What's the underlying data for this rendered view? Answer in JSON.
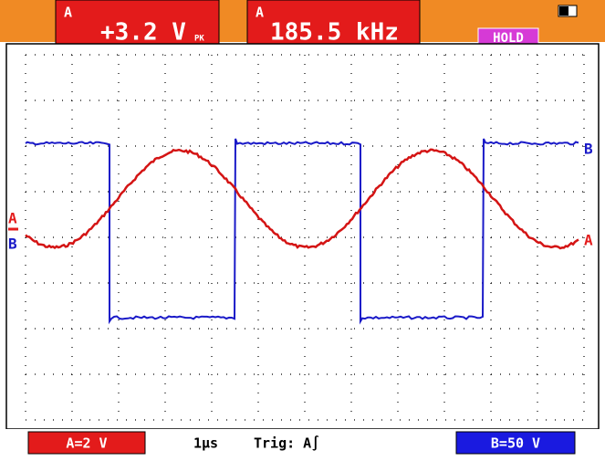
{
  "top_bar": {
    "readout_1": {
      "channel": "A",
      "value": "+3.2 V",
      "mode": "PK"
    },
    "readout_2": {
      "channel": "A",
      "value": "185.5 kHz"
    },
    "status": "HOLD"
  },
  "screen": {
    "left_labels": [
      "A",
      "B"
    ],
    "right_labels": [
      "B",
      "A"
    ]
  },
  "bottom_bar": {
    "channel_a": "A=2 V",
    "timebase": "1µs",
    "trigger": "Trig: A∫",
    "channel_b": "B=50 V"
  }
}
